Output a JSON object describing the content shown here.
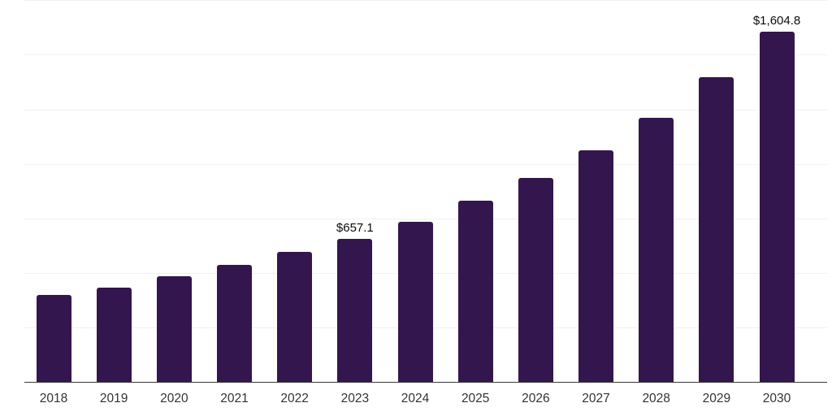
{
  "colors": {
    "bar": "#34164e",
    "axis_line": "#3a3a3a",
    "gridline": "#f1f1f4",
    "data_label": "#0d0d0d",
    "tick_label": "#333333",
    "background": "#ffffff"
  },
  "chart_data": {
    "type": "bar",
    "title": "",
    "xlabel": "",
    "ylabel": "",
    "categories": [
      "2018",
      "2019",
      "2020",
      "2021",
      "2022",
      "2023",
      "2024",
      "2025",
      "2026",
      "2027",
      "2028",
      "2029",
      "2030"
    ],
    "values": [
      398,
      434,
      485,
      537,
      595,
      657.1,
      734,
      831,
      934,
      1061,
      1212,
      1398,
      1604.8
    ],
    "data_labels": [
      "",
      "",
      "",
      "",
      "",
      "$657.1",
      "",
      "",
      "",
      "",
      "",
      "",
      "$1,604.8"
    ],
    "ylim": [
      0,
      1750
    ],
    "gridline_step": 250,
    "grid": "horizontal-only",
    "y_tick_labels_visible": false,
    "legend": "none"
  }
}
